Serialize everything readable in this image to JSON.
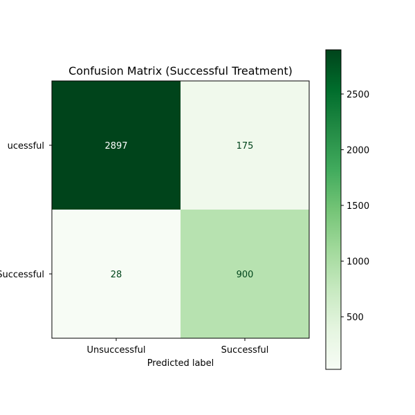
{
  "chart_data": {
    "type": "heatmap",
    "title": "Confusion Matrix (Successful Treatment)",
    "xlabel": "Predicted label",
    "ylabel": "",
    "x_categories": [
      "Unsuccessful",
      "Successful"
    ],
    "y_categories": [
      "Unsuccessful",
      "Successful"
    ],
    "y_tick_labels_visible": [
      "ucessful",
      "Successful"
    ],
    "values": [
      [
        2897,
        175
      ],
      [
        28,
        900
      ]
    ],
    "colorbar": {
      "colormap": "Greens",
      "ticks": [
        500,
        1000,
        1500,
        2000,
        2500
      ],
      "vmin": 28,
      "vmax": 2897
    }
  }
}
